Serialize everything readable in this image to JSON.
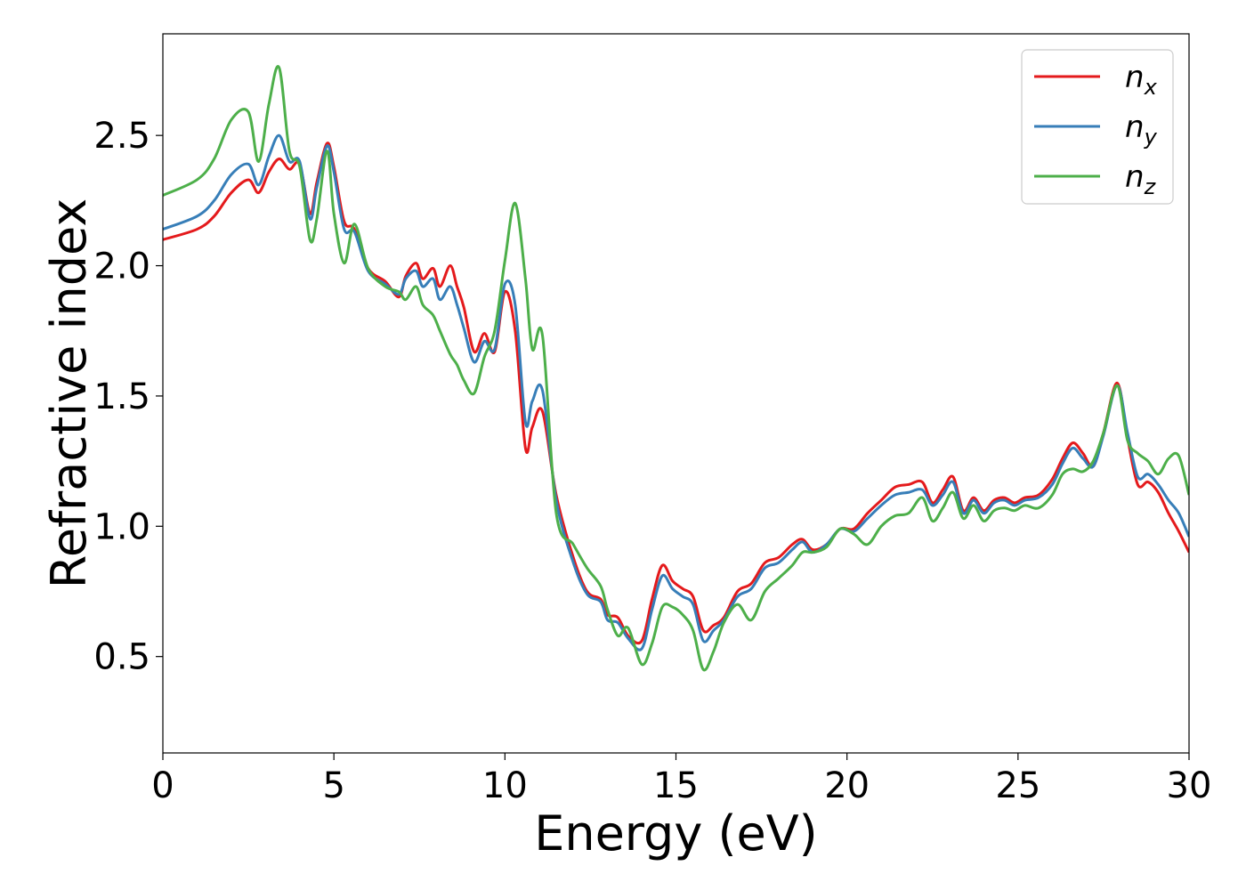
{
  "chart_data": {
    "type": "line",
    "xlabel": "Energy (eV)",
    "ylabel": "Refractive index",
    "xlim": [
      0,
      30
    ],
    "ylim": [
      0.13,
      2.89
    ],
    "xticks": [
      "0",
      "5",
      "10",
      "15",
      "20",
      "25",
      "30"
    ],
    "yticks": [
      "0.5",
      "1.0",
      "1.5",
      "2.0",
      "2.5"
    ],
    "grid": false,
    "legend_position": "top-right",
    "series": [
      {
        "name": "n_x",
        "label_main": "n",
        "label_sub": "x",
        "color": "#e41a1c",
        "x": [
          0,
          1,
          1.5,
          2,
          2.5,
          2.8,
          3.1,
          3.4,
          3.7,
          4.0,
          4.3,
          4.5,
          4.8,
          5.0,
          5.3,
          5.6,
          6.0,
          6.5,
          6.9,
          7.1,
          7.4,
          7.6,
          7.9,
          8.1,
          8.4,
          8.6,
          8.8,
          9.1,
          9.4,
          9.7,
          10.0,
          10.3,
          10.6,
          10.8,
          11.1,
          11.5,
          12.0,
          12.4,
          12.8,
          13.0,
          13.3,
          13.6,
          14.0,
          14.3,
          14.6,
          14.9,
          15.2,
          15.5,
          15.8,
          16.1,
          16.4,
          16.8,
          17.2,
          17.6,
          18.0,
          18.4,
          18.7,
          19.0,
          19.4,
          19.8,
          20.2,
          20.6,
          21.0,
          21.4,
          21.8,
          22.2,
          22.5,
          22.8,
          23.1,
          23.4,
          23.7,
          24.0,
          24.3,
          24.6,
          24.9,
          25.2,
          25.6,
          26.0,
          26.3,
          26.6,
          26.9,
          27.2,
          27.5,
          27.9,
          28.2,
          28.5,
          28.8,
          29.1,
          29.4,
          29.7,
          30.0
        ],
        "y": [
          2.1,
          2.14,
          2.19,
          2.28,
          2.33,
          2.28,
          2.36,
          2.41,
          2.37,
          2.39,
          2.2,
          2.32,
          2.47,
          2.38,
          2.17,
          2.14,
          1.99,
          1.94,
          1.88,
          1.96,
          2.01,
          1.95,
          1.99,
          1.92,
          2.0,
          1.92,
          1.84,
          1.67,
          1.74,
          1.67,
          1.9,
          1.75,
          1.3,
          1.38,
          1.44,
          1.12,
          0.88,
          0.75,
          0.72,
          0.66,
          0.65,
          0.58,
          0.56,
          0.72,
          0.85,
          0.79,
          0.76,
          0.73,
          0.6,
          0.62,
          0.65,
          0.75,
          0.78,
          0.86,
          0.88,
          0.93,
          0.95,
          0.91,
          0.93,
          0.99,
          0.99,
          1.05,
          1.1,
          1.15,
          1.16,
          1.17,
          1.09,
          1.14,
          1.19,
          1.06,
          1.11,
          1.06,
          1.1,
          1.11,
          1.09,
          1.11,
          1.12,
          1.18,
          1.26,
          1.32,
          1.28,
          1.23,
          1.36,
          1.55,
          1.34,
          1.16,
          1.17,
          1.13,
          1.05,
          0.98,
          0.9
        ]
      },
      {
        "name": "n_y",
        "label_main": "n",
        "label_sub": "y",
        "color": "#377eb8",
        "x": [
          0,
          1,
          1.5,
          2,
          2.5,
          2.8,
          3.1,
          3.4,
          3.7,
          4.0,
          4.3,
          4.5,
          4.8,
          5.0,
          5.3,
          5.6,
          6.0,
          6.5,
          6.9,
          7.1,
          7.4,
          7.6,
          7.9,
          8.1,
          8.4,
          8.6,
          8.8,
          9.1,
          9.4,
          9.7,
          10.0,
          10.3,
          10.6,
          10.8,
          11.1,
          11.5,
          12.0,
          12.4,
          12.8,
          13.0,
          13.3,
          13.6,
          14.0,
          14.3,
          14.6,
          14.9,
          15.2,
          15.5,
          15.8,
          16.1,
          16.4,
          16.8,
          17.2,
          17.6,
          18.0,
          18.4,
          18.7,
          19.0,
          19.4,
          19.8,
          20.2,
          20.6,
          21.0,
          21.4,
          21.8,
          22.2,
          22.5,
          22.8,
          23.1,
          23.4,
          23.7,
          24.0,
          24.3,
          24.6,
          24.9,
          25.2,
          25.6,
          26.0,
          26.3,
          26.6,
          26.9,
          27.2,
          27.5,
          27.9,
          28.2,
          28.5,
          28.8,
          29.1,
          29.4,
          29.7,
          30.0
        ],
        "y": [
          2.14,
          2.19,
          2.25,
          2.35,
          2.39,
          2.31,
          2.42,
          2.5,
          2.4,
          2.4,
          2.18,
          2.3,
          2.46,
          2.36,
          2.14,
          2.13,
          1.98,
          1.93,
          1.89,
          1.95,
          1.98,
          1.92,
          1.95,
          1.87,
          1.92,
          1.85,
          1.76,
          1.63,
          1.71,
          1.68,
          1.93,
          1.85,
          1.4,
          1.48,
          1.52,
          1.1,
          0.86,
          0.74,
          0.71,
          0.64,
          0.63,
          0.57,
          0.53,
          0.68,
          0.81,
          0.76,
          0.73,
          0.7,
          0.56,
          0.6,
          0.64,
          0.73,
          0.76,
          0.84,
          0.86,
          0.91,
          0.94,
          0.9,
          0.93,
          0.99,
          0.98,
          1.03,
          1.08,
          1.12,
          1.13,
          1.14,
          1.08,
          1.12,
          1.17,
          1.05,
          1.1,
          1.05,
          1.09,
          1.1,
          1.08,
          1.1,
          1.11,
          1.16,
          1.24,
          1.3,
          1.26,
          1.23,
          1.35,
          1.54,
          1.36,
          1.19,
          1.2,
          1.16,
          1.1,
          1.05,
          0.96
        ]
      },
      {
        "name": "n_z",
        "label_main": "n",
        "label_sub": "z",
        "color": "#4daf4a",
        "x": [
          0,
          1,
          1.5,
          2,
          2.5,
          2.8,
          3.1,
          3.4,
          3.7,
          4.0,
          4.3,
          4.5,
          4.8,
          5.0,
          5.3,
          5.6,
          6.0,
          6.5,
          6.9,
          7.1,
          7.4,
          7.6,
          7.9,
          8.1,
          8.4,
          8.6,
          8.8,
          9.1,
          9.4,
          9.7,
          10.0,
          10.3,
          10.6,
          10.8,
          11.1,
          11.5,
          12.0,
          12.4,
          12.8,
          13.0,
          13.3,
          13.6,
          14.0,
          14.3,
          14.6,
          14.9,
          15.2,
          15.5,
          15.8,
          16.1,
          16.4,
          16.8,
          17.2,
          17.6,
          18.0,
          18.4,
          18.7,
          19.0,
          19.4,
          19.8,
          20.2,
          20.6,
          21.0,
          21.4,
          21.8,
          22.2,
          22.5,
          22.8,
          23.1,
          23.4,
          23.7,
          24.0,
          24.3,
          24.6,
          24.9,
          25.2,
          25.6,
          26.0,
          26.3,
          26.6,
          26.9,
          27.2,
          27.5,
          27.9,
          28.2,
          28.5,
          28.8,
          29.1,
          29.4,
          29.7,
          30.0
        ],
        "y": [
          2.27,
          2.33,
          2.41,
          2.56,
          2.59,
          2.4,
          2.62,
          2.76,
          2.44,
          2.38,
          2.1,
          2.18,
          2.44,
          2.2,
          2.01,
          2.16,
          1.99,
          1.92,
          1.9,
          1.87,
          1.92,
          1.85,
          1.81,
          1.75,
          1.66,
          1.62,
          1.56,
          1.51,
          1.65,
          1.75,
          2.02,
          2.24,
          1.95,
          1.68,
          1.73,
          1.05,
          0.93,
          0.84,
          0.77,
          0.68,
          0.58,
          0.61,
          0.47,
          0.55,
          0.69,
          0.69,
          0.66,
          0.6,
          0.45,
          0.52,
          0.63,
          0.7,
          0.64,
          0.75,
          0.8,
          0.85,
          0.9,
          0.9,
          0.92,
          0.99,
          0.97,
          0.93,
          1.0,
          1.04,
          1.05,
          1.11,
          1.02,
          1.07,
          1.13,
          1.03,
          1.08,
          1.02,
          1.06,
          1.07,
          1.06,
          1.08,
          1.07,
          1.12,
          1.2,
          1.22,
          1.21,
          1.25,
          1.36,
          1.54,
          1.33,
          1.28,
          1.25,
          1.2,
          1.26,
          1.27,
          1.12
        ]
      }
    ]
  }
}
